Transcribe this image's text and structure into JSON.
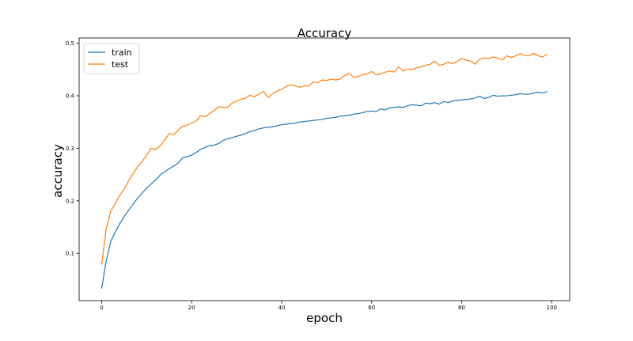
{
  "chart_data": {
    "type": "line",
    "title": "Accuracy",
    "xlabel": "epoch",
    "ylabel": "accuracy",
    "xlim": [
      -5,
      104
    ],
    "ylim": [
      0.01,
      0.51
    ],
    "xticks": [
      0,
      20,
      40,
      60,
      80,
      100
    ],
    "yticks": [
      0.1,
      0.2,
      0.3,
      0.4,
      0.5
    ],
    "xtick_labels": [
      "0",
      "20",
      "40",
      "60",
      "80",
      "100"
    ],
    "ytick_labels": [
      "0.1",
      "0.2",
      "0.3",
      "0.4",
      "0.5"
    ],
    "grid": false,
    "legend": "top-left",
    "series": [
      {
        "name": "train",
        "color": "#1f77b4",
        "x": [
          0,
          1,
          2,
          3,
          4,
          5,
          6,
          7,
          8,
          9,
          10,
          11,
          12,
          13,
          14,
          15,
          16,
          17,
          18,
          19,
          20,
          21,
          22,
          23,
          24,
          25,
          26,
          27,
          28,
          29,
          30,
          31,
          32,
          33,
          34,
          35,
          36,
          37,
          38,
          39,
          40,
          41,
          42,
          43,
          44,
          45,
          46,
          47,
          48,
          49,
          50,
          51,
          52,
          53,
          54,
          55,
          56,
          57,
          58,
          59,
          60,
          61,
          62,
          63,
          64,
          65,
          66,
          67,
          68,
          69,
          70,
          71,
          72,
          73,
          74,
          75,
          76,
          77,
          78,
          79,
          80,
          81,
          82,
          83,
          84,
          85,
          86,
          87,
          88,
          89,
          90,
          91,
          92,
          93,
          94,
          95,
          96,
          97,
          98,
          99
        ],
        "values": [
          0.033,
          0.085,
          0.122,
          0.14,
          0.156,
          0.17,
          0.182,
          0.194,
          0.205,
          0.215,
          0.224,
          0.232,
          0.24,
          0.249,
          0.255,
          0.261,
          0.266,
          0.272,
          0.282,
          0.284,
          0.287,
          0.292,
          0.298,
          0.302,
          0.305,
          0.306,
          0.309,
          0.315,
          0.318,
          0.32,
          0.323,
          0.325,
          0.328,
          0.332,
          0.334,
          0.337,
          0.339,
          0.34,
          0.341,
          0.343,
          0.345,
          0.346,
          0.347,
          0.348,
          0.35,
          0.351,
          0.352,
          0.353,
          0.354,
          0.355,
          0.357,
          0.358,
          0.359,
          0.361,
          0.362,
          0.363,
          0.365,
          0.366,
          0.368,
          0.37,
          0.371,
          0.37,
          0.375,
          0.373,
          0.377,
          0.378,
          0.379,
          0.378,
          0.381,
          0.383,
          0.382,
          0.381,
          0.386,
          0.385,
          0.387,
          0.384,
          0.389,
          0.387,
          0.39,
          0.391,
          0.392,
          0.393,
          0.394,
          0.396,
          0.399,
          0.395,
          0.397,
          0.401,
          0.399,
          0.4,
          0.4,
          0.401,
          0.402,
          0.404,
          0.403,
          0.403,
          0.405,
          0.407,
          0.405,
          0.408
        ]
      },
      {
        "name": "test",
        "color": "#ff7f0e",
        "x": [
          0,
          1,
          2,
          3,
          4,
          5,
          6,
          7,
          8,
          9,
          10,
          11,
          12,
          13,
          14,
          15,
          16,
          17,
          18,
          19,
          20,
          21,
          22,
          23,
          24,
          25,
          26,
          27,
          28,
          29,
          30,
          31,
          32,
          33,
          34,
          35,
          36,
          37,
          38,
          39,
          40,
          41,
          42,
          43,
          44,
          45,
          46,
          47,
          48,
          49,
          50,
          51,
          52,
          53,
          54,
          55,
          56,
          57,
          58,
          59,
          60,
          61,
          62,
          63,
          64,
          65,
          66,
          67,
          68,
          69,
          70,
          71,
          72,
          73,
          74,
          75,
          76,
          77,
          78,
          79,
          80,
          81,
          82,
          83,
          84,
          85,
          86,
          87,
          88,
          89,
          90,
          91,
          92,
          93,
          94,
          95,
          96,
          97,
          98,
          99
        ],
        "values": [
          0.078,
          0.145,
          0.18,
          0.195,
          0.21,
          0.222,
          0.238,
          0.252,
          0.265,
          0.275,
          0.287,
          0.3,
          0.298,
          0.305,
          0.316,
          0.328,
          0.326,
          0.334,
          0.342,
          0.344,
          0.348,
          0.352,
          0.362,
          0.36,
          0.366,
          0.372,
          0.379,
          0.378,
          0.378,
          0.386,
          0.39,
          0.393,
          0.396,
          0.401,
          0.398,
          0.404,
          0.408,
          0.397,
          0.404,
          0.409,
          0.412,
          0.418,
          0.421,
          0.419,
          0.416,
          0.419,
          0.418,
          0.426,
          0.425,
          0.43,
          0.429,
          0.432,
          0.43,
          0.432,
          0.438,
          0.443,
          0.435,
          0.437,
          0.44,
          0.442,
          0.446,
          0.44,
          0.442,
          0.445,
          0.447,
          0.445,
          0.455,
          0.447,
          0.451,
          0.45,
          0.453,
          0.455,
          0.458,
          0.46,
          0.466,
          0.458,
          0.46,
          0.464,
          0.461,
          0.465,
          0.471,
          0.468,
          0.466,
          0.46,
          0.47,
          0.472,
          0.471,
          0.474,
          0.472,
          0.468,
          0.476,
          0.473,
          0.476,
          0.48,
          0.477,
          0.476,
          0.481,
          0.476,
          0.474,
          0.479
        ]
      }
    ]
  }
}
